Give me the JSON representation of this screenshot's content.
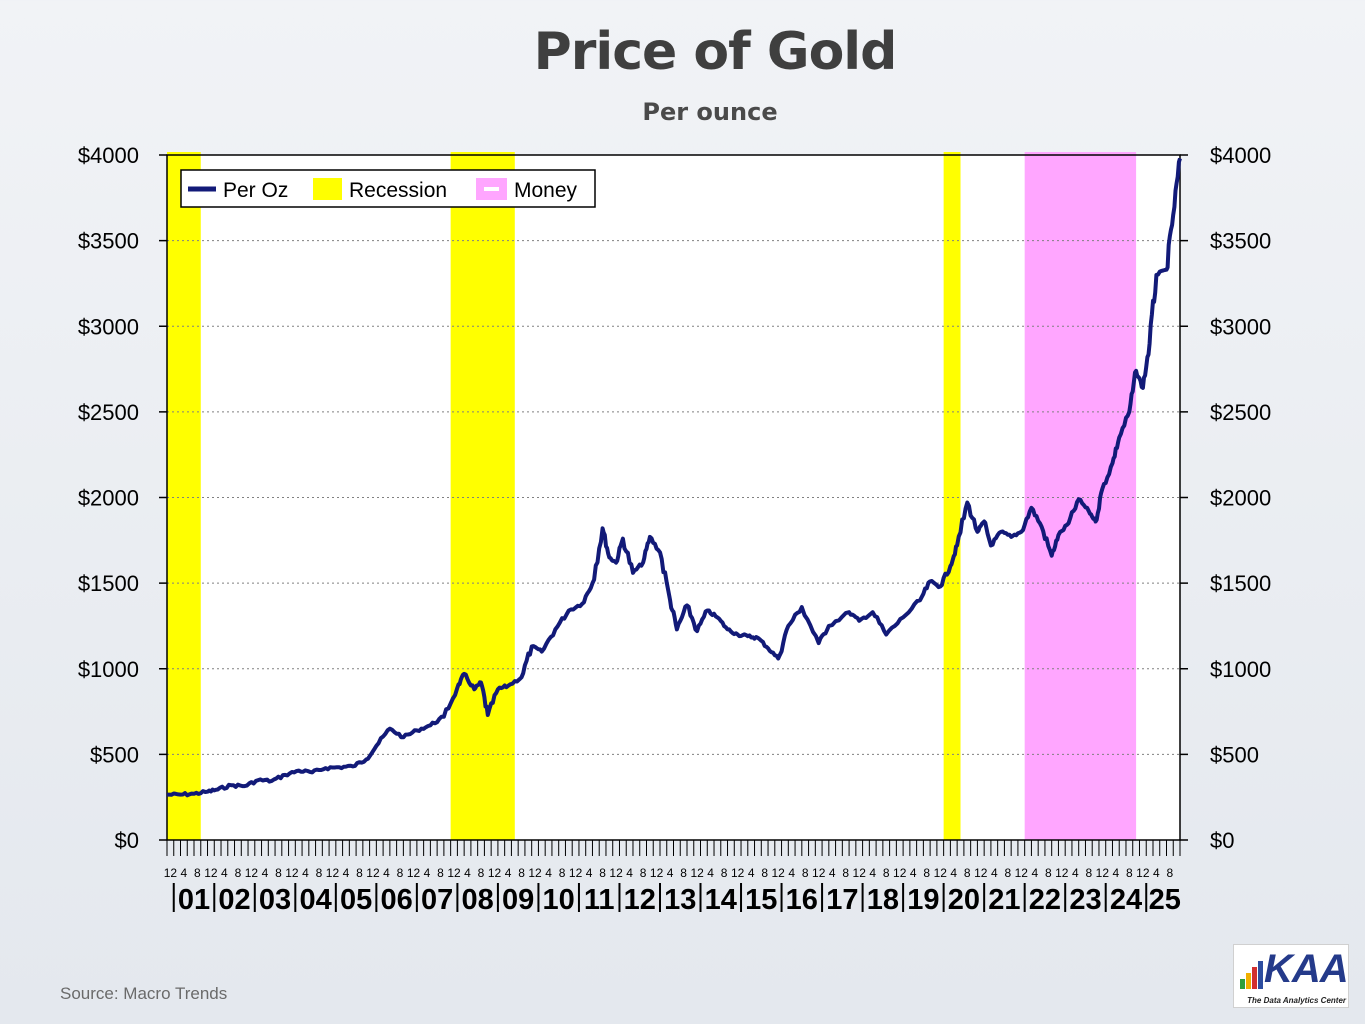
{
  "header": {
    "title": "Price of Gold",
    "subtitle": "Per ounce"
  },
  "footer": {
    "source": "Source:  Macro Trends"
  },
  "logo": {
    "text": "KAA",
    "tagline": "The Data Analytics Center"
  },
  "colors": {
    "line": "#121a78",
    "recession": "#ffff00",
    "money": "#ffa6ff",
    "gridline": "#808080"
  },
  "chart_data": {
    "type": "line",
    "title": "Price of Gold",
    "subtitle": "Per ounce",
    "x_start": "2000-11",
    "x_end": "2025-11",
    "ylim": [
      0,
      4000
    ],
    "y_ticks": [
      0,
      500,
      1000,
      1500,
      2000,
      2500,
      3000,
      3500,
      4000
    ],
    "y_tick_labels": [
      "$0",
      "$500",
      "$1000",
      "$1500",
      "$2000",
      "$2500",
      "$3000",
      "$3500",
      "$4000"
    ],
    "y_axes": "left and right",
    "grid": "horizontal dotted",
    "year_labels": [
      "01",
      "02",
      "03",
      "04",
      "05",
      "06",
      "07",
      "08",
      "09",
      "10",
      "11",
      "12",
      "13",
      "14",
      "15",
      "16",
      "17",
      "18",
      "19",
      "20",
      "21",
      "22",
      "23",
      "24",
      "25"
    ],
    "month_tick_labels": [
      "4",
      "8",
      "12"
    ],
    "legend": {
      "placement": "top-left",
      "entries": [
        "Per Oz",
        "Recession",
        "Money"
      ]
    },
    "shaded_regions": [
      {
        "label": "Recession",
        "start": "2000-11",
        "end": "2001-09"
      },
      {
        "label": "Recession",
        "start": "2007-11",
        "end": "2009-06"
      },
      {
        "label": "Recession",
        "start": "2020-01",
        "end": "2020-06"
      },
      {
        "label": "Money",
        "start": "2022-01",
        "end": "2024-10"
      }
    ],
    "series": [
      {
        "name": "Per Oz",
        "points": [
          [
            "2000-11",
            265
          ],
          [
            "2001-03",
            265
          ],
          [
            "2001-07",
            270
          ],
          [
            "2001-11",
            282
          ],
          [
            "2002-02",
            295
          ],
          [
            "2002-06",
            320
          ],
          [
            "2002-10",
            315
          ],
          [
            "2003-02",
            350
          ],
          [
            "2003-06",
            345
          ],
          [
            "2003-10",
            380
          ],
          [
            "2004-02",
            405
          ],
          [
            "2004-06",
            395
          ],
          [
            "2004-10",
            420
          ],
          [
            "2005-02",
            425
          ],
          [
            "2005-06",
            430
          ],
          [
            "2005-10",
            470
          ],
          [
            "2006-01",
            550
          ],
          [
            "2006-05",
            650
          ],
          [
            "2006-09",
            600
          ],
          [
            "2007-01",
            640
          ],
          [
            "2007-05",
            670
          ],
          [
            "2007-09",
            720
          ],
          [
            "2008-01",
            890
          ],
          [
            "2008-03",
            970
          ],
          [
            "2008-06",
            880
          ],
          [
            "2008-08",
            920
          ],
          [
            "2008-10",
            730
          ],
          [
            "2009-01",
            880
          ],
          [
            "2009-04",
            900
          ],
          [
            "2009-08",
            950
          ],
          [
            "2009-11",
            1130
          ],
          [
            "2010-02",
            1100
          ],
          [
            "2010-06",
            1230
          ],
          [
            "2010-10",
            1340
          ],
          [
            "2011-02",
            1380
          ],
          [
            "2011-05",
            1500
          ],
          [
            "2011-08",
            1820
          ],
          [
            "2011-10",
            1650
          ],
          [
            "2011-12",
            1620
          ],
          [
            "2012-02",
            1760
          ],
          [
            "2012-05",
            1560
          ],
          [
            "2012-08",
            1620
          ],
          [
            "2012-10",
            1770
          ],
          [
            "2013-01",
            1680
          ],
          [
            "2013-04",
            1400
          ],
          [
            "2013-06",
            1230
          ],
          [
            "2013-09",
            1370
          ],
          [
            "2013-12",
            1220
          ],
          [
            "2014-03",
            1340
          ],
          [
            "2014-06",
            1300
          ],
          [
            "2014-09",
            1230
          ],
          [
            "2014-12",
            1200
          ],
          [
            "2015-03",
            1190
          ],
          [
            "2015-06",
            1180
          ],
          [
            "2015-09",
            1120
          ],
          [
            "2015-12",
            1060
          ],
          [
            "2016-03",
            1250
          ],
          [
            "2016-07",
            1360
          ],
          [
            "2016-12",
            1150
          ],
          [
            "2017-03",
            1250
          ],
          [
            "2017-09",
            1330
          ],
          [
            "2017-12",
            1280
          ],
          [
            "2018-04",
            1330
          ],
          [
            "2018-08",
            1200
          ],
          [
            "2019-01",
            1300
          ],
          [
            "2019-06",
            1400
          ],
          [
            "2019-09",
            1510
          ],
          [
            "2019-12",
            1480
          ],
          [
            "2020-03",
            1600
          ],
          [
            "2020-05",
            1720
          ],
          [
            "2020-08",
            1970
          ],
          [
            "2020-11",
            1800
          ],
          [
            "2021-01",
            1860
          ],
          [
            "2021-03",
            1720
          ],
          [
            "2021-06",
            1800
          ],
          [
            "2021-09",
            1770
          ],
          [
            "2021-12",
            1800
          ],
          [
            "2022-03",
            1940
          ],
          [
            "2022-06",
            1830
          ],
          [
            "2022-09",
            1660
          ],
          [
            "2022-11",
            1780
          ],
          [
            "2023-02",
            1850
          ],
          [
            "2023-05",
            1990
          ],
          [
            "2023-08",
            1920
          ],
          [
            "2023-10",
            1860
          ],
          [
            "2023-12",
            2050
          ],
          [
            "2024-03",
            2200
          ],
          [
            "2024-05",
            2350
          ],
          [
            "2024-08",
            2500
          ],
          [
            "2024-10",
            2740
          ],
          [
            "2024-12",
            2640
          ],
          [
            "2025-02",
            2900
          ],
          [
            "2025-04",
            3300
          ],
          [
            "2025-07",
            3330
          ],
          [
            "2025-09",
            3650
          ],
          [
            "2025-11",
            3980
          ]
        ]
      }
    ]
  }
}
